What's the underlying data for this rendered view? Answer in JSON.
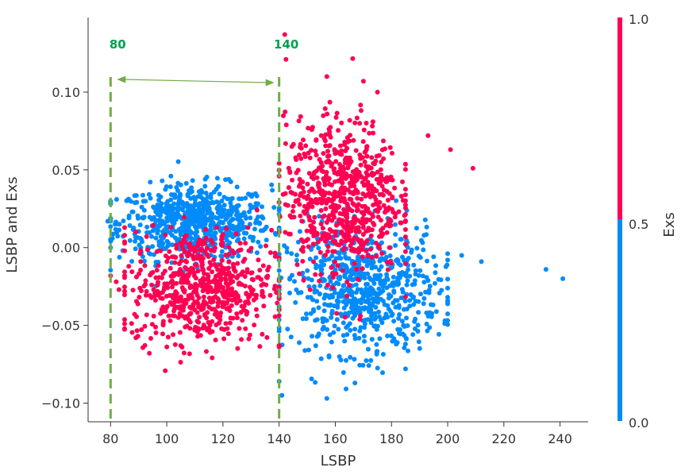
{
  "chart_data": {
    "type": "scatter",
    "title": "",
    "xlabel": "LSBP",
    "ylabel": "LSBP and Exs",
    "xlim": [
      72,
      250
    ],
    "ylim": [
      -0.112,
      0.148
    ],
    "xticks": [
      80,
      100,
      120,
      140,
      160,
      180,
      200,
      220,
      240
    ],
    "yticks": [
      -0.1,
      -0.05,
      0.0,
      0.05,
      0.1
    ],
    "ytick_labels": [
      "−0.10",
      "−0.05",
      "0.00",
      "0.05",
      "0.10"
    ],
    "grid": false,
    "colorbar": {
      "label": "Exs",
      "range": [
        0.0,
        1.0
      ],
      "ticks": [
        "0.0",
        "0.5",
        "1.0"
      ],
      "colors": {
        "low": "#008bfb",
        "high": "#ff0052"
      }
    },
    "annotations": {
      "vlines": [
        {
          "x": 80,
          "label": "80"
        },
        {
          "x": 140,
          "label": "140"
        }
      ],
      "range_arrow": [
        80,
        140
      ],
      "color": "#70ad47",
      "label_color": "#00a050"
    },
    "series": [
      {
        "exs": 0,
        "color": "#008bfb",
        "segments": [
          {
            "x_range": [
              80,
              140
            ],
            "y_center": 0.016,
            "y_spread": 0.012,
            "n": 700
          },
          {
            "x_range": [
              140,
              200
            ],
            "y_center": -0.028,
            "y_spread": 0.02,
            "n": 700
          }
        ],
        "points": [
          {
            "x": 79,
            "y": 0.017
          },
          {
            "x": 80,
            "y": 0.0
          },
          {
            "x": 140,
            "y": -0.086
          },
          {
            "x": 141,
            "y": -0.095
          },
          {
            "x": 157,
            "y": -0.097
          },
          {
            "x": 167,
            "y": -0.087
          },
          {
            "x": 185,
            "y": -0.062
          },
          {
            "x": 205,
            "y": -0.005
          },
          {
            "x": 212,
            "y": -0.009
          },
          {
            "x": 235,
            "y": -0.014
          },
          {
            "x": 241,
            "y": -0.02
          },
          {
            "x": 88,
            "y": 0.023
          },
          {
            "x": 92,
            "y": 0.024
          }
        ]
      },
      {
        "exs": 1,
        "color": "#ff0052",
        "segments": [
          {
            "x_range": [
              85,
              140
            ],
            "y_center": -0.025,
            "y_spread": 0.018,
            "n": 650
          },
          {
            "x_range": [
              140,
              185
            ],
            "y_center": 0.032,
            "y_spread": 0.025,
            "n": 700
          }
        ],
        "points": [
          {
            "x": 80,
            "y": -0.018
          },
          {
            "x": 82,
            "y": -0.022
          },
          {
            "x": 83,
            "y": -0.027
          },
          {
            "x": 89,
            "y": -0.058
          },
          {
            "x": 142,
            "y": 0.137
          },
          {
            "x": 157,
            "y": 0.11
          },
          {
            "x": 170,
            "y": 0.107
          },
          {
            "x": 175,
            "y": 0.1
          },
          {
            "x": 193,
            "y": 0.072
          },
          {
            "x": 201,
            "y": 0.063
          },
          {
            "x": 209,
            "y": 0.051
          },
          {
            "x": 105,
            "y": -0.063
          },
          {
            "x": 140,
            "y": -0.063
          }
        ]
      }
    ]
  }
}
